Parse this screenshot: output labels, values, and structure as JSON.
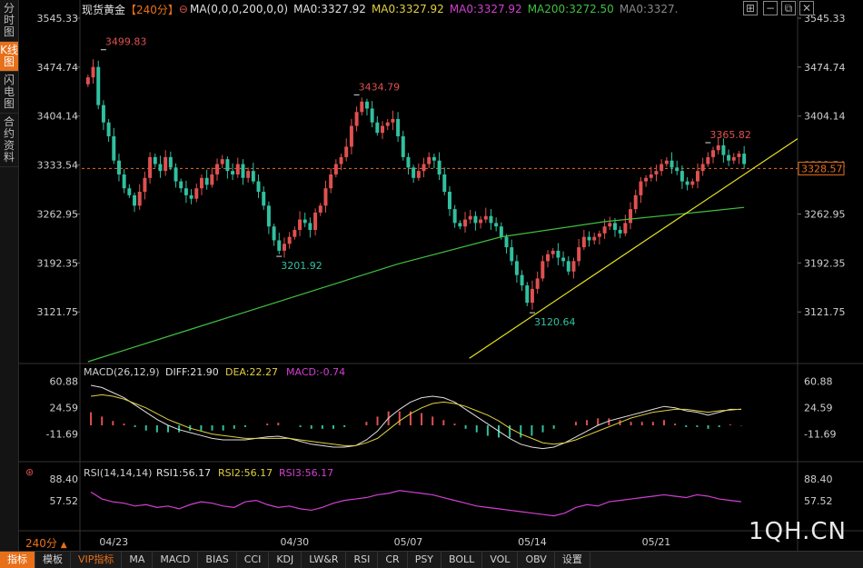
{
  "sidebar": {
    "tabs": [
      {
        "label": "分时图",
        "active": false
      },
      {
        "label": "K线图",
        "active": true
      },
      {
        "label": "闪电图",
        "active": false
      },
      {
        "label": "合约资料",
        "active": false
      }
    ]
  },
  "header": {
    "symbol": "现货黄金",
    "period": "【240分】",
    "ma_settings": "MA(0,0,0,200,0,0)",
    "ma_values": [
      {
        "text": "MA0:3327.92",
        "color": "#e0e0e0"
      },
      {
        "text": "MA0:3327.92",
        "color": "#e0d040"
      },
      {
        "text": "MA0:3327.92",
        "color": "#d040d0"
      },
      {
        "text": "MA200:3272.50",
        "color": "#40c040"
      },
      {
        "text": "MA0:3327.",
        "color": "#888888"
      }
    ]
  },
  "window_icons": [
    "add-icon",
    "minimize-icon",
    "restore-icon",
    "close-icon"
  ],
  "chart_data": [
    {
      "type": "candlestick",
      "name": "price",
      "yaxis_ticks": [
        "3545.33",
        "3474.74",
        "3404.14",
        "3333.54",
        "3262.95",
        "3192.35",
        "3121.75"
      ],
      "ylim": [
        3050,
        3545.33
      ],
      "last_price": "3328.57",
      "x_labels": [
        "04/23",
        "04/30",
        "05/07",
        "05/14",
        "05/21"
      ],
      "annotations": [
        {
          "text": "3499.83",
          "value": 3499.83,
          "color": "#e05050"
        },
        {
          "text": "3434.79",
          "value": 3434.79,
          "color": "#e05050"
        },
        {
          "text": "3201.92",
          "value": 3201.92,
          "color": "#30c0a0"
        },
        {
          "text": "3120.64",
          "value": 3120.64,
          "color": "#30c0a0"
        },
        {
          "text": "3365.82",
          "value": 3365.82,
          "color": "#e05050"
        }
      ],
      "close": [
        3460,
        3475,
        3420,
        3395,
        3375,
        3340,
        3320,
        3300,
        3290,
        3275,
        3295,
        3315,
        3345,
        3335,
        3325,
        3345,
        3330,
        3310,
        3300,
        3290,
        3285,
        3300,
        3315,
        3305,
        3320,
        3335,
        3342,
        3325,
        3320,
        3335,
        3315,
        3325,
        3310,
        3295,
        3275,
        3245,
        3225,
        3210,
        3220,
        3230,
        3240,
        3255,
        3250,
        3240,
        3265,
        3275,
        3300,
        3320,
        3335,
        3345,
        3360,
        3390,
        3410,
        3425,
        3415,
        3395,
        3380,
        3390,
        3395,
        3400,
        3375,
        3345,
        3330,
        3315,
        3325,
        3335,
        3345,
        3340,
        3320,
        3295,
        3270,
        3250,
        3245,
        3255,
        3260,
        3250,
        3255,
        3260,
        3250,
        3245,
        3230,
        3215,
        3195,
        3175,
        3160,
        3135,
        3155,
        3170,
        3195,
        3205,
        3210,
        3200,
        3195,
        3180,
        3195,
        3215,
        3230,
        3225,
        3230,
        3235,
        3245,
        3250,
        3240,
        3235,
        3250,
        3270,
        3290,
        3310,
        3315,
        3320,
        3325,
        3335,
        3340,
        3330,
        3325,
        3310,
        3305,
        3310,
        3325,
        3335,
        3345,
        3355,
        3362,
        3348,
        3340,
        3345,
        3350,
        3335
      ]
    },
    {
      "type": "line",
      "name": "MA200",
      "x": [
        0,
        20,
        40,
        60,
        80,
        100,
        120,
        127
      ],
      "values": [
        3050,
        3097,
        3144,
        3191,
        3230,
        3252,
        3267,
        3272.5
      ]
    },
    {
      "type": "line",
      "name": "trendline",
      "x": [
        87,
        127
      ],
      "values": [
        3120.64,
        3320
      ]
    },
    {
      "type": "macd",
      "name": "MACD",
      "label": "MACD(26,12,9)",
      "diff_text": "DIFF:21.90",
      "dea_text": "DEA:22.27",
      "macd_text": "MACD:-0.74",
      "yaxis_ticks": [
        "60.88",
        "24.59",
        "-11.69"
      ],
      "diff": [
        55,
        52,
        45,
        38,
        28,
        18,
        8,
        0,
        -6,
        -10,
        -14,
        -18,
        -20,
        -20,
        -20,
        -18,
        -16,
        -15,
        -18,
        -22,
        -26,
        -28,
        -30,
        -30,
        -28,
        -20,
        -8,
        10,
        22,
        32,
        38,
        40,
        38,
        32,
        22,
        12,
        2,
        -8,
        -18,
        -26,
        -30,
        -32,
        -30,
        -24,
        -16,
        -8,
        0,
        6,
        10,
        14,
        18,
        22,
        26,
        24,
        20,
        18,
        14,
        18,
        22,
        21.9
      ],
      "dea": [
        40,
        42,
        40,
        36,
        30,
        24,
        16,
        8,
        2,
        -4,
        -8,
        -12,
        -14,
        -16,
        -18,
        -18,
        -18,
        -18,
        -18,
        -20,
        -22,
        -24,
        -26,
        -28,
        -28,
        -24,
        -18,
        -6,
        6,
        16,
        24,
        30,
        32,
        30,
        26,
        20,
        14,
        6,
        -4,
        -12,
        -18,
        -24,
        -26,
        -24,
        -20,
        -14,
        -8,
        -2,
        4,
        10,
        14,
        18,
        20,
        22,
        22,
        20,
        18,
        20,
        21,
        22.27
      ]
    },
    {
      "type": "line",
      "name": "RSI",
      "label": "RSI(14,14,14)",
      "rsi1_text": "RSI1:56.17",
      "rsi2_text": "RSI2:56.17",
      "rsi3_text": "RSI3:56.17",
      "yaxis_ticks": [
        "88.40",
        "57.52"
      ],
      "values": [
        70,
        60,
        56,
        54,
        50,
        52,
        48,
        50,
        46,
        52,
        56,
        54,
        50,
        48,
        56,
        58,
        52,
        48,
        50,
        46,
        44,
        48,
        54,
        58,
        60,
        62,
        66,
        68,
        72,
        70,
        68,
        66,
        62,
        58,
        54,
        50,
        48,
        46,
        44,
        42,
        40,
        38,
        36,
        40,
        48,
        52,
        50,
        56,
        58,
        60,
        62,
        64,
        66,
        64,
        62,
        66,
        64,
        60,
        58,
        56.17
      ]
    }
  ],
  "bottom": {
    "period_label": "240分",
    "tabs": [
      {
        "label": "指标",
        "active": true
      },
      {
        "label": "模板"
      },
      {
        "label": "VIP指标",
        "vip": true
      },
      {
        "label": "MA"
      },
      {
        "label": "MACD"
      },
      {
        "label": "BIAS"
      },
      {
        "label": "CCI"
      },
      {
        "label": "KDJ"
      },
      {
        "label": "LW&R"
      },
      {
        "label": "RSI"
      },
      {
        "label": "CR"
      },
      {
        "label": "PSY"
      },
      {
        "label": "BOLL"
      },
      {
        "label": "VOL"
      },
      {
        "label": "OBV"
      },
      {
        "label": "设置"
      }
    ]
  },
  "watermark": "1QH.CN"
}
